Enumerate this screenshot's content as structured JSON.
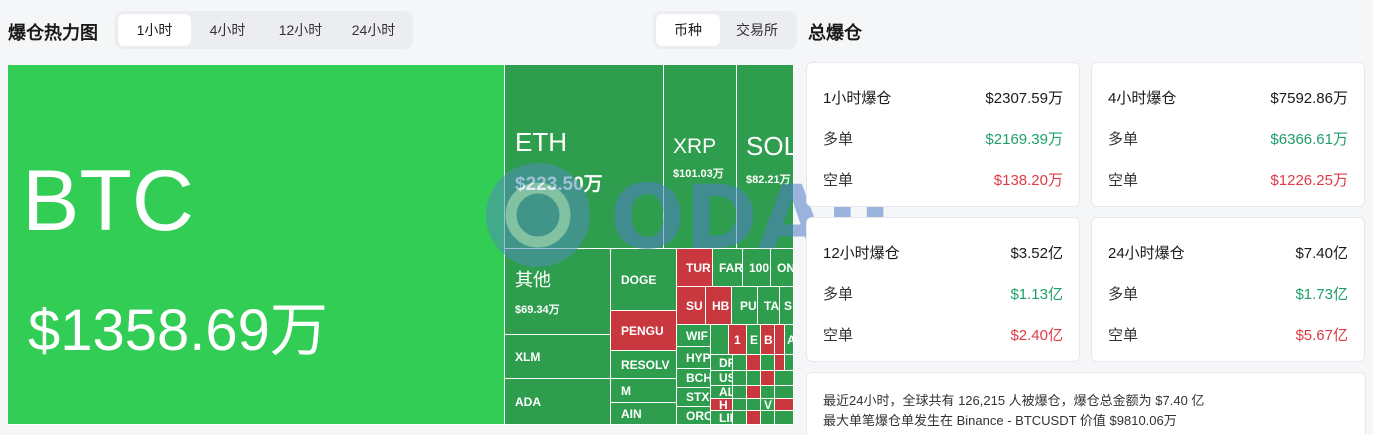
{
  "header": {
    "title": "爆仓热力图",
    "time_tabs": [
      "1小时",
      "4小时",
      "12小时",
      "24小时"
    ],
    "time_active": 0,
    "type_tabs": [
      "币种",
      "交易所"
    ],
    "type_active": 0
  },
  "treemap": {
    "btc": {
      "symbol": "BTC",
      "amount": "$1358.69万"
    },
    "eth": {
      "symbol": "ETH",
      "amount": "$223.50万"
    },
    "xrp": {
      "symbol": "XRP",
      "amount": "$101.03万"
    },
    "sol": {
      "symbol": "SOL",
      "amount": "$82.21万"
    },
    "other": {
      "symbol": "其他",
      "amount": "$69.34万"
    },
    "doge": "DOGE",
    "pengu": "PENGU",
    "resolv": "RESOLV",
    "m": "M",
    "ain": "AIN",
    "xlm": "XLM",
    "ada": "ADA",
    "tur": "TUR",
    "far": "FAR",
    "n100": "100",
    "on": "ON",
    "su": "SU",
    "hb": "HB",
    "pu": "PU",
    "ta": "TA",
    "s": "S",
    "wif": "WIF",
    "n1": "1",
    "e": "E",
    "b": "B",
    "a": "A",
    "hyp": "HYP",
    "df": "DF",
    "h1": "H",
    "bch": "BCH",
    "us": "US",
    "stx": "STX",
    "al": "AL",
    "orc": "ORC",
    "h2": "H",
    "lin": "LIN",
    "vl": "V"
  },
  "totals": {
    "title": "总爆仓",
    "long_label": "多单",
    "short_label": "空单",
    "cards": [
      {
        "label": "1小时爆仓",
        "total": "$2307.59万",
        "long": "$2169.39万",
        "short": "$138.20万"
      },
      {
        "label": "4小时爆仓",
        "total": "$7592.86万",
        "long": "$6366.61万",
        "short": "$1226.25万"
      },
      {
        "label": "12小时爆仓",
        "total": "$3.52亿",
        "long": "$1.13亿",
        "short": "$2.40亿"
      },
      {
        "label": "24小时爆仓",
        "total": "$7.40亿",
        "long": "$1.73亿",
        "short": "$5.67亿"
      }
    ]
  },
  "summary": {
    "line1": "最近24小时，全球共有 126,215 人被爆仓，爆仓总金额为 $7.40 亿",
    "line2": "最大单笔爆仓单发生在 Binance - BTCUSDT 价值 $9810.06万"
  },
  "watermark": {
    "text": "ODAILY"
  },
  "colors": {
    "long": "#1e9e6a",
    "short": "#e03a46",
    "tile_green": "#2e9e4e",
    "tile_bright": "#32cd55",
    "tile_red": "#c9373f"
  }
}
